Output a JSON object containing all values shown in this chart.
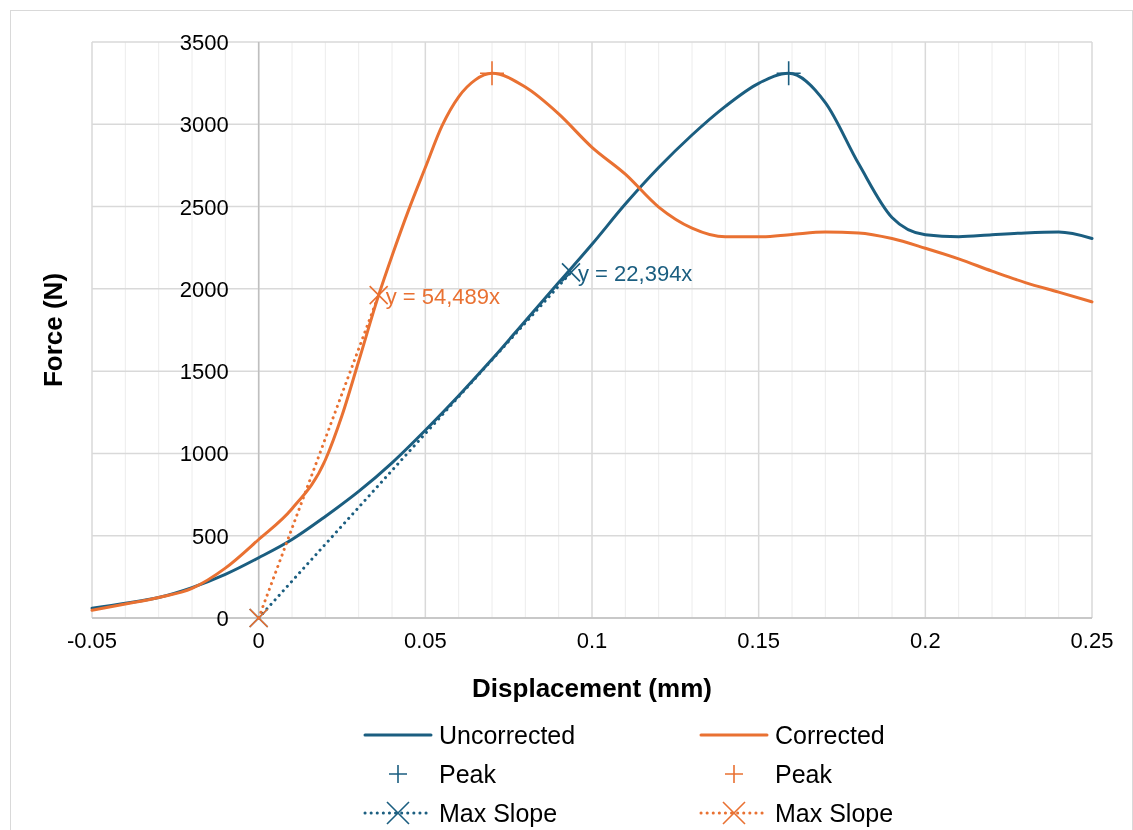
{
  "chart_data": {
    "type": "line",
    "xlabel": "Displacement (mm)",
    "ylabel": "Force (N)",
    "xlim": [
      -0.05,
      0.25
    ],
    "ylim": [
      0,
      3500
    ],
    "xticks": [
      -0.05,
      {
        "value": -0.04,
        "label": null
      },
      {
        "value": -0.03,
        "label": null
      },
      {
        "value": -0.02,
        "label": null
      },
      {
        "value": -0.01,
        "label": null
      },
      0,
      {
        "value": 0.01,
        "label": null
      },
      {
        "value": 0.02,
        "label": null
      },
      {
        "value": 0.03,
        "label": null
      },
      {
        "value": 0.04,
        "label": null
      },
      0.05,
      {
        "value": 0.06,
        "label": null
      },
      {
        "value": 0.07,
        "label": null
      },
      {
        "value": 0.08,
        "label": null
      },
      {
        "value": 0.09,
        "label": null
      },
      0.1,
      {
        "value": 0.11,
        "label": null
      },
      {
        "value": 0.12,
        "label": null
      },
      {
        "value": 0.13,
        "label": null
      },
      {
        "value": 0.14,
        "label": null
      },
      0.15,
      {
        "value": 0.16,
        "label": null
      },
      {
        "value": 0.17,
        "label": null
      },
      {
        "value": 0.18,
        "label": null
      },
      {
        "value": 0.19,
        "label": null
      },
      0.2,
      {
        "value": 0.21,
        "label": null
      },
      {
        "value": 0.22,
        "label": null
      },
      {
        "value": 0.23,
        "label": null
      },
      {
        "value": 0.24,
        "label": null
      },
      0.25
    ],
    "yticks": [
      0,
      500,
      1000,
      1500,
      2000,
      2500,
      3000,
      3500
    ],
    "grid": true,
    "legend": "bottom",
    "series": [
      {
        "name": "Uncorrected",
        "color": "#1b5e80",
        "line_style": "solid",
        "marker": "none",
        "x": [
          -0.05,
          -0.04,
          -0.03,
          -0.02,
          -0.01,
          0,
          0.01,
          0.02,
          0.03,
          0.04,
          0.05,
          0.06,
          0.07,
          0.08,
          0.09,
          0.1,
          0.11,
          0.12,
          0.13,
          0.14,
          0.15,
          0.159,
          0.17,
          0.18,
          0.19,
          0.2,
          0.21,
          0.22,
          0.23,
          0.24,
          0.25
        ],
        "values": [
          60,
          90,
          125,
          185,
          265,
          366,
          477,
          617,
          769,
          943,
          1141,
          1351,
          1572,
          1805,
          2038,
          2271,
          2515,
          2737,
          2935,
          3109,
          3249,
          3310,
          3132,
          2760,
          2434,
          2329,
          2317,
          2329,
          2340,
          2345,
          2306
        ]
      },
      {
        "name": "Corrected",
        "color": "#e97132",
        "line_style": "solid",
        "marker": "none",
        "x": [
          -0.05,
          -0.04,
          -0.03,
          -0.02,
          -0.01,
          0,
          0.01,
          0.02,
          0.025,
          0.03,
          0.036,
          0.04,
          0.045,
          0.05,
          0.055,
          0.06,
          0.065,
          0.07,
          0.08,
          0.09,
          0.1,
          0.11,
          0.12,
          0.13,
          0.14,
          0.15,
          0.16,
          0.17,
          0.18,
          0.19,
          0.2,
          0.21,
          0.22,
          0.23,
          0.24,
          0.25
        ],
        "values": [
          47,
          85,
          125,
          180,
          303,
          477,
          664,
          960,
          1230,
          1560,
          1962,
          2200,
          2480,
          2737,
          2990,
          3167,
          3270,
          3310,
          3226,
          3063,
          2860,
          2697,
          2497,
          2369,
          2316,
          2316,
          2331,
          2345,
          2340,
          2306,
          2247,
          2182,
          2108,
          2038,
          1980,
          1921
        ]
      },
      {
        "name": "Peak",
        "color": "#1b5e80",
        "type": "scatter",
        "marker": "cross",
        "x": [
          0.159
        ],
        "values": [
          3310
        ]
      },
      {
        "name": "Peak",
        "color": "#e97132",
        "type": "scatter",
        "marker": "cross",
        "x": [
          0.07
        ],
        "values": [
          3310
        ]
      },
      {
        "name": "Max Slope",
        "color": "#1b5e80",
        "line_style": "dotted",
        "marker": "cross",
        "x": [
          0,
          0.0937
        ],
        "values": [
          0,
          2100
        ]
      },
      {
        "name": "Max Slope",
        "color": "#e97132",
        "line_style": "dotted",
        "marker": "cross",
        "x": [
          0,
          0.036
        ],
        "values": [
          0,
          1962
        ]
      }
    ],
    "annotations": [
      {
        "text": "y = 54,489x",
        "x": 0.036,
        "y": 1962
      },
      {
        "text": "y = 22,394x",
        "x": 0.0937,
        "y": 2100
      }
    ]
  }
}
